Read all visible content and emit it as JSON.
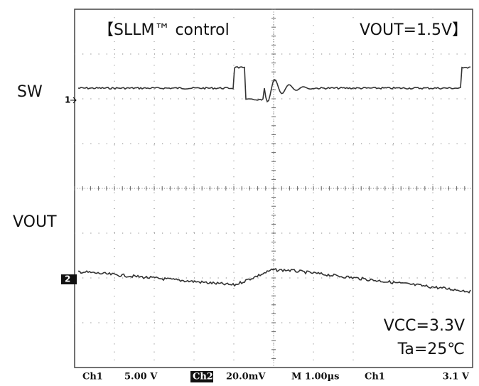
{
  "annotations": {
    "title_left": "【SLLM™ control",
    "title_right": "VOUT=1.5V】",
    "conditions": [
      "VCC=3.3V",
      "Ta=25℃"
    ]
  },
  "channels": [
    {
      "label": "SW",
      "marker": "1"
    },
    {
      "label": "VOUT",
      "marker": "2"
    }
  ],
  "status_bar": {
    "ch1": "Ch1",
    "ch1_scale": "5.00 V",
    "ch2": "Ch2",
    "ch2_scale": "20.0mV",
    "timebase": "M 1.00µs",
    "trigger_source": "Ch1",
    "trigger_level": "3.1 V"
  }
}
